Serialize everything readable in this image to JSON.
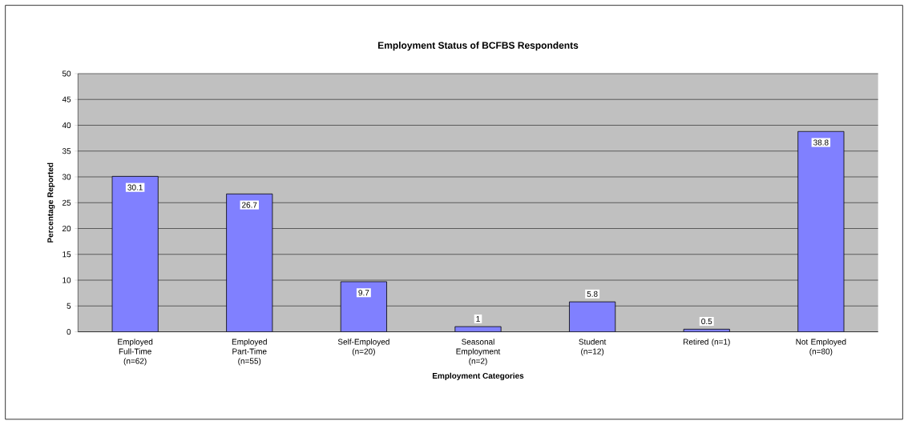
{
  "chart_data": {
    "type": "bar",
    "title": "Employment Status of BCFBS Respondents",
    "xlabel": "Employment Categories",
    "ylabel": "Percentage Reported",
    "categories": [
      "Employed Full-Time (n=62)",
      "Employed Part-Time (n=55)",
      "Self-Employed (n=20)",
      "Seasonal Employment (n=2)",
      "Student (n=12)",
      "Retired (n=1)",
      "Not Employed (n=80)"
    ],
    "values": [
      30.1,
      26.7,
      9.7,
      1,
      5.8,
      0.5,
      38.8
    ],
    "color": "#8080ff",
    "ylim": [
      0,
      50
    ],
    "yticks": [
      0,
      5,
      10,
      15,
      20,
      25,
      30,
      35,
      40,
      45,
      50
    ],
    "grid": "y",
    "data_labels": true
  }
}
